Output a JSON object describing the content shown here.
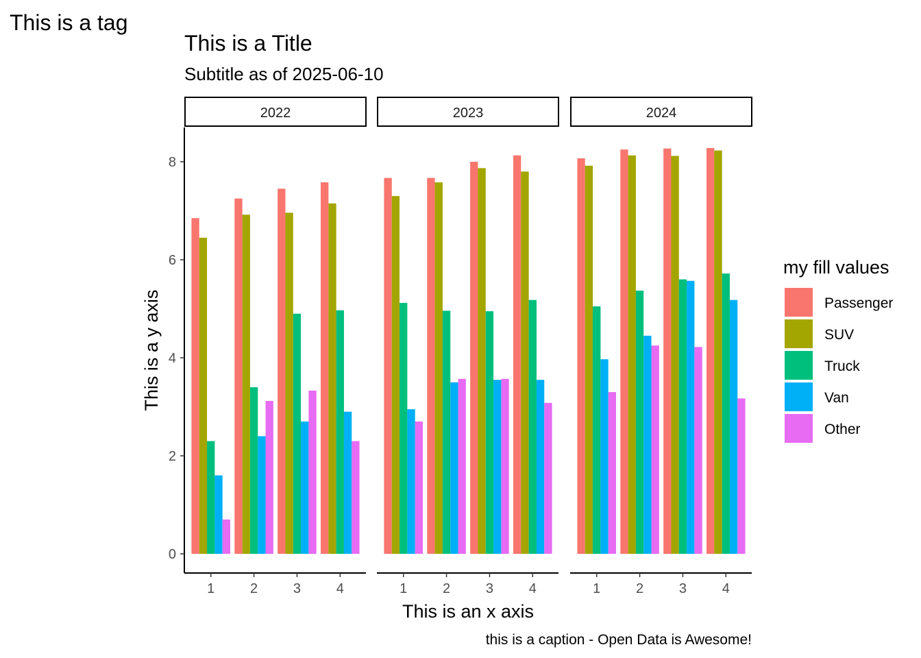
{
  "tag": "This is a tag",
  "chart_data": {
    "type": "bar",
    "title": "This is a Title",
    "subtitle": "Subtitle as of 2025-06-10",
    "xlabel": "This is an x axis",
    "ylabel": "This is a y axis",
    "caption": "this is a caption - Open Data is Awesome!",
    "ylim": [
      0,
      8.8
    ],
    "yticks": [
      0,
      2,
      4,
      6,
      8
    ],
    "grid": false,
    "legend": {
      "title": "my fill values",
      "position": "right",
      "entries": [
        "Passenger",
        "SUV",
        "Truck",
        "Van",
        "Other"
      ]
    },
    "colors": {
      "Passenger": "#F8766D",
      "SUV": "#A3A500",
      "Truck": "#00BF7D",
      "Van": "#00B0F6",
      "Other": "#E76BF3"
    },
    "categories": [
      "1",
      "2",
      "3",
      "4"
    ],
    "facets": [
      {
        "label": "2022",
        "series": [
          {
            "name": "Passenger",
            "values": [
              6.85,
              7.25,
              7.45,
              7.58
            ]
          },
          {
            "name": "SUV",
            "values": [
              6.45,
              6.92,
              6.96,
              7.15
            ]
          },
          {
            "name": "Truck",
            "values": [
              2.3,
              3.4,
              4.9,
              4.97
            ]
          },
          {
            "name": "Van",
            "values": [
              1.6,
              2.4,
              2.7,
              2.9
            ]
          },
          {
            "name": "Other",
            "values": [
              0.7,
              3.12,
              3.33,
              2.3
            ]
          }
        ]
      },
      {
        "label": "2023",
        "series": [
          {
            "name": "Passenger",
            "values": [
              7.67,
              7.67,
              8.0,
              8.13
            ]
          },
          {
            "name": "SUV",
            "values": [
              7.3,
              7.58,
              7.87,
              7.8
            ]
          },
          {
            "name": "Truck",
            "values": [
              5.12,
              4.96,
              4.95,
              5.18
            ]
          },
          {
            "name": "Van",
            "values": [
              2.95,
              3.5,
              3.55,
              3.55
            ]
          },
          {
            "name": "Other",
            "values": [
              2.7,
              3.57,
              3.57,
              3.08
            ]
          }
        ]
      },
      {
        "label": "2024",
        "series": [
          {
            "name": "Passenger",
            "values": [
              8.07,
              8.25,
              8.27,
              8.28
            ]
          },
          {
            "name": "SUV",
            "values": [
              7.92,
              8.13,
              8.12,
              8.23
            ]
          },
          {
            "name": "Truck",
            "values": [
              5.05,
              5.37,
              5.6,
              5.72
            ]
          },
          {
            "name": "Van",
            "values": [
              3.97,
              4.45,
              5.57,
              5.18
            ]
          },
          {
            "name": "Other",
            "values": [
              3.3,
              4.25,
              4.22,
              3.17
            ]
          }
        ]
      }
    ]
  }
}
